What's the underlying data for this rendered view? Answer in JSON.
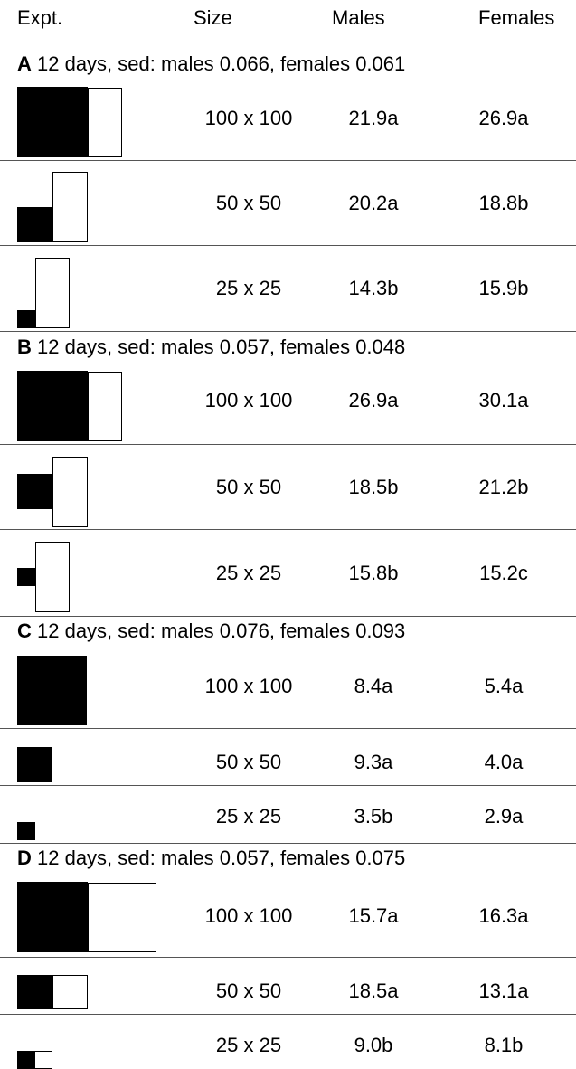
{
  "header": {
    "expt": "Expt.",
    "size": "Size",
    "males": "Males",
    "females": "Females"
  },
  "sections": [
    {
      "letter": "A",
      "caption": " 12 days, sed: males 0.066, females 0.061",
      "rows": [
        {
          "size": "100 x 100",
          "males": "21.9a",
          "females": "26.9a"
        },
        {
          "size": "50 x 50",
          "males": "20.2a",
          "females": "18.8b"
        },
        {
          "size": "25 x 25",
          "males": "14.3b",
          "females": "15.9b"
        }
      ]
    },
    {
      "letter": "B",
      "caption": " 12 days, sed: males 0.057, females 0.048",
      "rows": [
        {
          "size": "100 x 100",
          "males": "26.9a",
          "females": "30.1a"
        },
        {
          "size": "50 x 50",
          "males": "18.5b",
          "females": "21.2b"
        },
        {
          "size": "25 x 25",
          "males": "15.8b",
          "females": "15.2c"
        }
      ]
    },
    {
      "letter": "C",
      "caption": " 12 days, sed: males 0.076, females 0.093",
      "rows": [
        {
          "size": "100 x 100",
          "males": "8.4a",
          "females": "5.4a"
        },
        {
          "size": "50 x 50",
          "males": "9.3a",
          "females": "4.0a"
        },
        {
          "size": "25 x 25",
          "males": "3.5b",
          "females": "2.9a"
        }
      ]
    },
    {
      "letter": "D",
      "caption": " 12 days, sed: males 0.057, females 0.075",
      "rows": [
        {
          "size": "100 x 100",
          "males": "15.7a",
          "females": "16.3a"
        },
        {
          "size": "50 x 50",
          "males": "18.5a",
          "females": "13.1a"
        },
        {
          "size": "25 x 25",
          "males": "9.0b",
          "females": "8.1b"
        }
      ]
    }
  ]
}
